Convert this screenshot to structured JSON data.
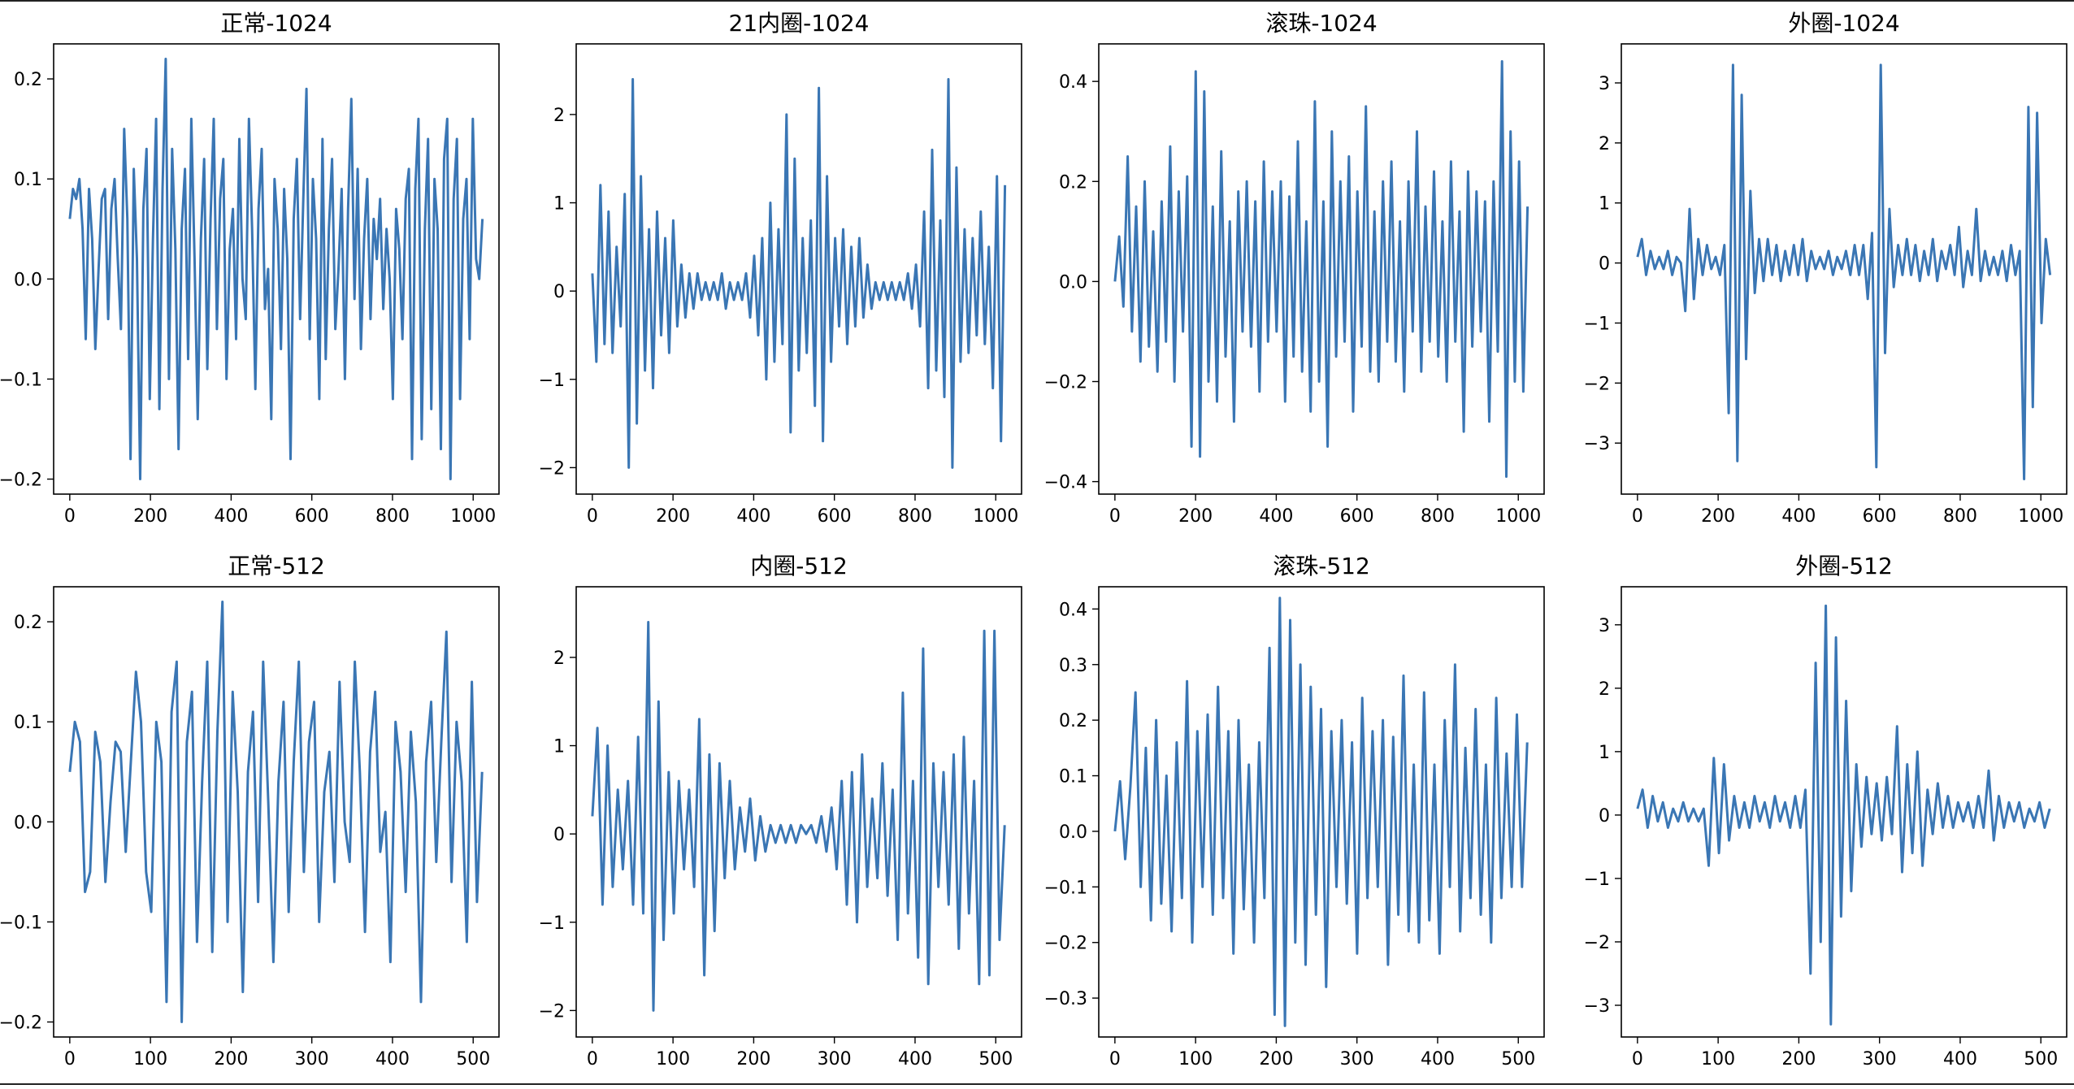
{
  "figure": {
    "line_color": "#3a76b4"
  },
  "chart_data": [
    {
      "type": "line",
      "title": "正常-1024",
      "n": 1024,
      "xlim": [
        -40,
        1064
      ],
      "ylim": [
        -0.215,
        0.235
      ],
      "xticks": [
        0,
        200,
        400,
        600,
        800,
        1000
      ],
      "yticks": [
        -0.2,
        -0.1,
        0.0,
        0.1,
        0.2
      ],
      "ytick_labels": [
        "−0.2",
        "−0.1",
        "0.0",
        "0.1",
        "0.2"
      ],
      "series": [
        {
          "values": [
            0.06,
            0.09,
            0.08,
            0.1,
            0.05,
            -0.06,
            0.09,
            0.04,
            -0.07,
            0.01,
            0.08,
            0.09,
            -0.04,
            0.07,
            0.1,
            0.02,
            -0.05,
            0.15,
            0.06,
            -0.18,
            0.11,
            0.02,
            -0.2,
            0.07,
            0.13,
            -0.12,
            0.04,
            0.16,
            -0.13,
            0.09,
            0.22,
            -0.1,
            0.13,
            0.03,
            -0.17,
            0.05,
            0.11,
            -0.08,
            0.16,
            0.02,
            -0.14,
            0.04,
            0.12,
            -0.09,
            0.06,
            0.16,
            -0.05,
            0.08,
            0.12,
            -0.1,
            0.03,
            0.07,
            -0.06,
            0.14,
            0.0,
            -0.04,
            0.16,
            0.05,
            -0.11,
            0.07,
            0.13,
            -0.03,
            0.01,
            -0.14,
            0.1,
            0.05,
            -0.07,
            0.09,
            0.02,
            -0.18,
            0.06,
            0.12,
            -0.04,
            0.08,
            0.19,
            -0.06,
            0.1,
            0.04,
            -0.12,
            0.14,
            -0.08,
            0.05,
            0.12,
            -0.05,
            0.01,
            0.09,
            -0.1,
            0.07,
            0.18,
            -0.02,
            0.11,
            -0.07,
            0.04,
            0.1,
            -0.04,
            0.06,
            0.02,
            0.08,
            -0.03,
            0.05,
            0.0,
            -0.12,
            0.07,
            0.03,
            -0.06,
            0.08,
            0.11,
            -0.18,
            0.09,
            0.16,
            -0.16,
            0.05,
            0.14,
            -0.13,
            0.1,
            0.05,
            -0.17,
            0.12,
            0.16,
            -0.2,
            0.08,
            0.14,
            -0.12,
            0.06,
            0.1,
            -0.06,
            0.16,
            0.02,
            0.0,
            0.06
          ]
        }
      ]
    },
    {
      "type": "line",
      "title": "21内圈-1024",
      "n": 1024,
      "xlim": [
        -40,
        1064
      ],
      "ylim": [
        -2.3,
        2.8
      ],
      "xticks": [
        0,
        200,
        400,
        600,
        800,
        1000
      ],
      "yticks": [
        -2,
        -1,
        0,
        1,
        2
      ],
      "ytick_labels": [
        "−2",
        "−1",
        "0",
        "1",
        "2"
      ],
      "series": [
        {
          "values": [
            0.2,
            -0.8,
            1.2,
            -0.6,
            0.9,
            -0.7,
            0.5,
            -0.4,
            1.1,
            -2.0,
            2.4,
            -1.5,
            1.3,
            -0.9,
            0.7,
            -1.1,
            0.9,
            -0.5,
            0.6,
            -0.7,
            0.8,
            -0.4,
            0.3,
            -0.3,
            0.2,
            -0.2,
            0.2,
            -0.1,
            0.1,
            -0.1,
            0.1,
            -0.1,
            0.2,
            -0.2,
            0.1,
            -0.1,
            0.1,
            -0.1,
            0.2,
            -0.3,
            0.4,
            -0.5,
            0.6,
            -1.0,
            1.0,
            -0.8,
            0.7,
            -0.6,
            2.0,
            -1.6,
            1.5,
            -0.9,
            0.6,
            -0.7,
            0.8,
            -1.3,
            2.3,
            -1.7,
            1.3,
            -0.8,
            0.6,
            -0.4,
            0.7,
            -0.6,
            0.5,
            -0.4,
            0.6,
            -0.3,
            0.3,
            -0.2,
            0.1,
            -0.1,
            0.1,
            -0.1,
            0.1,
            -0.1,
            0.1,
            -0.1,
            0.2,
            -0.2,
            0.3,
            -0.4,
            0.9,
            -1.1,
            1.6,
            -0.9,
            0.8,
            -1.2,
            2.4,
            -2.0,
            1.4,
            -0.8,
            0.7,
            -0.7,
            0.6,
            -0.5,
            0.9,
            -0.6,
            0.5,
            -1.1,
            1.3,
            -1.7,
            1.2
          ]
        }
      ]
    },
    {
      "type": "line",
      "title": "滚珠-1024",
      "n": 1024,
      "xlim": [
        -40,
        1064
      ],
      "ylim": [
        -0.425,
        0.475
      ],
      "xticks": [
        0,
        200,
        400,
        600,
        800,
        1000
      ],
      "yticks": [
        -0.4,
        -0.2,
        0.0,
        0.2,
        0.4
      ],
      "ytick_labels": [
        "−0.4",
        "−0.2",
        "0.0",
        "0.2",
        "0.4"
      ],
      "series": [
        {
          "values": [
            0.0,
            0.09,
            -0.05,
            0.25,
            -0.1,
            0.15,
            -0.16,
            0.2,
            -0.13,
            0.1,
            -0.18,
            0.16,
            -0.12,
            0.27,
            -0.2,
            0.18,
            -0.1,
            0.21,
            -0.33,
            0.42,
            -0.35,
            0.38,
            -0.2,
            0.15,
            -0.24,
            0.26,
            -0.15,
            0.12,
            -0.28,
            0.18,
            -0.1,
            0.2,
            -0.13,
            0.16,
            -0.22,
            0.24,
            -0.12,
            0.18,
            -0.1,
            0.2,
            -0.24,
            0.17,
            -0.15,
            0.28,
            -0.18,
            0.12,
            -0.26,
            0.36,
            -0.2,
            0.16,
            -0.33,
            0.3,
            -0.15,
            0.2,
            -0.12,
            0.25,
            -0.26,
            0.18,
            -0.13,
            0.35,
            -0.18,
            0.14,
            -0.2,
            0.2,
            -0.12,
            0.24,
            -0.16,
            0.12,
            -0.22,
            0.2,
            -0.1,
            0.3,
            -0.18,
            0.15,
            -0.12,
            0.22,
            -0.15,
            0.12,
            -0.2,
            0.24,
            -0.12,
            0.14,
            -0.3,
            0.22,
            -0.13,
            0.18,
            -0.1,
            0.16,
            -0.28,
            0.2,
            -0.14,
            0.44,
            -0.39,
            0.3,
            -0.2,
            0.24,
            -0.22,
            0.15
          ]
        }
      ]
    },
    {
      "type": "line",
      "title": "外圈-1024",
      "n": 1024,
      "xlim": [
        -40,
        1064
      ],
      "ylim": [
        -3.85,
        3.65
      ],
      "xticks": [
        0,
        200,
        400,
        600,
        800,
        1000
      ],
      "yticks": [
        -3,
        -2,
        -1,
        0,
        1,
        2,
        3
      ],
      "ytick_labels": [
        "−3",
        "−2",
        "−1",
        "0",
        "1",
        "2",
        "3"
      ],
      "series": [
        {
          "values": [
            0.1,
            0.4,
            -0.2,
            0.2,
            -0.1,
            0.1,
            -0.1,
            0.2,
            -0.2,
            0.1,
            0.0,
            -0.8,
            0.9,
            -0.6,
            0.4,
            -0.2,
            0.3,
            -0.1,
            0.1,
            -0.2,
            0.3,
            -2.5,
            3.3,
            -3.3,
            2.8,
            -1.6,
            1.2,
            -0.5,
            0.4,
            -0.3,
            0.4,
            -0.2,
            0.3,
            -0.3,
            0.2,
            -0.2,
            0.3,
            -0.2,
            0.4,
            -0.3,
            0.2,
            -0.1,
            0.1,
            -0.1,
            0.2,
            -0.2,
            0.1,
            -0.1,
            0.2,
            -0.2,
            0.3,
            -0.2,
            0.3,
            -0.6,
            0.5,
            -3.4,
            3.3,
            -1.5,
            0.9,
            -0.4,
            0.3,
            -0.2,
            0.4,
            -0.2,
            0.3,
            -0.3,
            0.2,
            -0.2,
            0.4,
            -0.3,
            0.2,
            -0.1,
            0.3,
            -0.2,
            0.6,
            -0.4,
            0.2,
            -0.2,
            0.9,
            -0.3,
            0.2,
            -0.2,
            0.1,
            -0.2,
            0.2,
            -0.3,
            0.3,
            -0.2,
            0.2,
            -3.6,
            2.6,
            -2.4,
            2.5,
            -1.0,
            0.4,
            -0.2
          ]
        }
      ]
    },
    {
      "type": "line",
      "title": "正常-512",
      "n": 512,
      "xlim": [
        -20,
        532
      ],
      "ylim": [
        -0.215,
        0.235
      ],
      "xticks": [
        0,
        100,
        200,
        300,
        400,
        500
      ],
      "yticks": [
        -0.2,
        -0.1,
        0.0,
        0.1,
        0.2
      ],
      "ytick_labels": [
        "−0.2",
        "−0.1",
        "0.0",
        "0.1",
        "0.2"
      ],
      "series": [
        {
          "values": [
            0.05,
            0.1,
            0.08,
            -0.07,
            -0.05,
            0.09,
            0.06,
            -0.06,
            0.02,
            0.08,
            0.07,
            -0.03,
            0.06,
            0.15,
            0.1,
            -0.05,
            -0.09,
            0.1,
            0.06,
            -0.18,
            0.11,
            0.16,
            -0.2,
            0.08,
            0.13,
            -0.12,
            0.04,
            0.16,
            -0.13,
            0.09,
            0.22,
            -0.1,
            0.13,
            0.03,
            -0.17,
            0.05,
            0.11,
            -0.08,
            0.16,
            0.02,
            -0.14,
            0.04,
            0.12,
            -0.09,
            0.06,
            0.16,
            -0.05,
            0.08,
            0.12,
            -0.1,
            0.03,
            0.07,
            -0.06,
            0.14,
            0.0,
            -0.04,
            0.16,
            0.05,
            -0.11,
            0.07,
            0.13,
            -0.03,
            0.01,
            -0.14,
            0.1,
            0.05,
            -0.07,
            0.09,
            0.02,
            -0.18,
            0.06,
            0.12,
            -0.04,
            0.08,
            0.19,
            -0.06,
            0.1,
            0.04,
            -0.12,
            0.14,
            -0.08,
            0.05
          ]
        }
      ]
    },
    {
      "type": "line",
      "title": "内圈-512",
      "n": 512,
      "xlim": [
        -20,
        532
      ],
      "ylim": [
        -2.3,
        2.8
      ],
      "xticks": [
        0,
        100,
        200,
        300,
        400,
        500
      ],
      "yticks": [
        -2,
        -1,
        0,
        1,
        2
      ],
      "ytick_labels": [
        "−2",
        "−1",
        "0",
        "1",
        "2"
      ],
      "series": [
        {
          "values": [
            0.2,
            1.2,
            -0.8,
            1.0,
            -0.6,
            0.5,
            -0.4,
            0.6,
            -0.8,
            1.1,
            -0.9,
            2.4,
            -2.0,
            1.5,
            -1.2,
            0.7,
            -0.9,
            0.6,
            -0.4,
            0.5,
            -0.6,
            1.3,
            -1.6,
            0.9,
            -1.1,
            0.8,
            -0.5,
            0.6,
            -0.4,
            0.3,
            -0.2,
            0.4,
            -0.3,
            0.2,
            -0.2,
            0.1,
            -0.1,
            0.1,
            -0.1,
            0.1,
            -0.1,
            0.1,
            0.0,
            0.1,
            -0.1,
            0.2,
            -0.2,
            0.3,
            -0.4,
            0.6,
            -0.8,
            0.7,
            -1.0,
            0.9,
            -0.6,
            0.4,
            -0.5,
            0.8,
            -0.7,
            0.5,
            -1.2,
            1.6,
            -0.9,
            0.6,
            -1.4,
            2.1,
            -1.7,
            0.8,
            -0.6,
            0.7,
            -0.8,
            0.9,
            -1.3,
            1.1,
            -0.9,
            0.6,
            -1.7,
            2.3,
            -1.6,
            2.3,
            -1.2,
            0.1
          ]
        }
      ]
    },
    {
      "type": "line",
      "title": "滚珠-512",
      "n": 512,
      "xlim": [
        -20,
        532
      ],
      "ylim": [
        -0.37,
        0.44
      ],
      "xticks": [
        0,
        100,
        200,
        300,
        400,
        500
      ],
      "yticks": [
        -0.3,
        -0.2,
        -0.1,
        0.0,
        0.1,
        0.2,
        0.3,
        0.4
      ],
      "ytick_labels": [
        "−0.3",
        "−0.2",
        "−0.1",
        "0.0",
        "0.1",
        "0.2",
        "0.3",
        "0.4"
      ],
      "series": [
        {
          "values": [
            0.0,
            0.09,
            -0.05,
            0.08,
            0.25,
            -0.1,
            0.15,
            -0.16,
            0.2,
            -0.13,
            0.1,
            -0.18,
            0.16,
            -0.12,
            0.27,
            -0.2,
            0.18,
            -0.1,
            0.21,
            -0.15,
            0.26,
            -0.12,
            0.18,
            -0.22,
            0.2,
            -0.14,
            0.12,
            -0.2,
            0.16,
            -0.12,
            0.33,
            -0.33,
            0.42,
            -0.35,
            0.38,
            -0.2,
            0.3,
            -0.24,
            0.26,
            -0.15,
            0.22,
            -0.28,
            0.18,
            -0.1,
            0.2,
            -0.13,
            0.16,
            -0.22,
            0.24,
            -0.12,
            0.18,
            -0.1,
            0.2,
            -0.24,
            0.17,
            -0.15,
            0.28,
            -0.18,
            0.12,
            -0.2,
            0.25,
            -0.16,
            0.12,
            -0.22,
            0.2,
            -0.1,
            0.3,
            -0.18,
            0.15,
            -0.12,
            0.22,
            -0.15,
            0.12,
            -0.2,
            0.24,
            -0.12,
            0.14,
            -0.1,
            0.21,
            -0.1,
            0.16
          ]
        }
      ]
    },
    {
      "type": "line",
      "title": "外圈-512",
      "n": 512,
      "xlim": [
        -20,
        532
      ],
      "ylim": [
        -3.5,
        3.6
      ],
      "xticks": [
        0,
        100,
        200,
        300,
        400,
        500
      ],
      "yticks": [
        -3,
        -2,
        -1,
        0,
        1,
        2,
        3
      ],
      "ytick_labels": [
        "−3",
        "−2",
        "−1",
        "0",
        "1",
        "2",
        "3"
      ],
      "series": [
        {
          "values": [
            0.1,
            0.4,
            -0.2,
            0.3,
            -0.1,
            0.2,
            -0.2,
            0.1,
            -0.1,
            0.2,
            -0.1,
            0.1,
            -0.1,
            0.1,
            -0.8,
            0.9,
            -0.6,
            0.8,
            -0.4,
            0.3,
            -0.2,
            0.2,
            -0.2,
            0.3,
            -0.1,
            0.2,
            -0.2,
            0.3,
            -0.1,
            0.2,
            -0.2,
            0.3,
            -0.2,
            0.4,
            -2.5,
            2.4,
            -2.0,
            3.3,
            -3.3,
            2.8,
            -1.6,
            1.8,
            -1.2,
            0.8,
            -0.5,
            0.6,
            -0.3,
            0.5,
            -0.4,
            0.6,
            -0.3,
            1.4,
            -0.9,
            0.8,
            -0.6,
            1.0,
            -0.8,
            0.4,
            -0.3,
            0.5,
            -0.2,
            0.3,
            -0.2,
            0.2,
            -0.1,
            0.2,
            -0.2,
            0.3,
            -0.2,
            0.7,
            -0.4,
            0.3,
            -0.2,
            0.2,
            -0.1,
            0.2,
            -0.2,
            0.1,
            -0.1,
            0.2,
            -0.2,
            0.1
          ]
        }
      ]
    }
  ]
}
